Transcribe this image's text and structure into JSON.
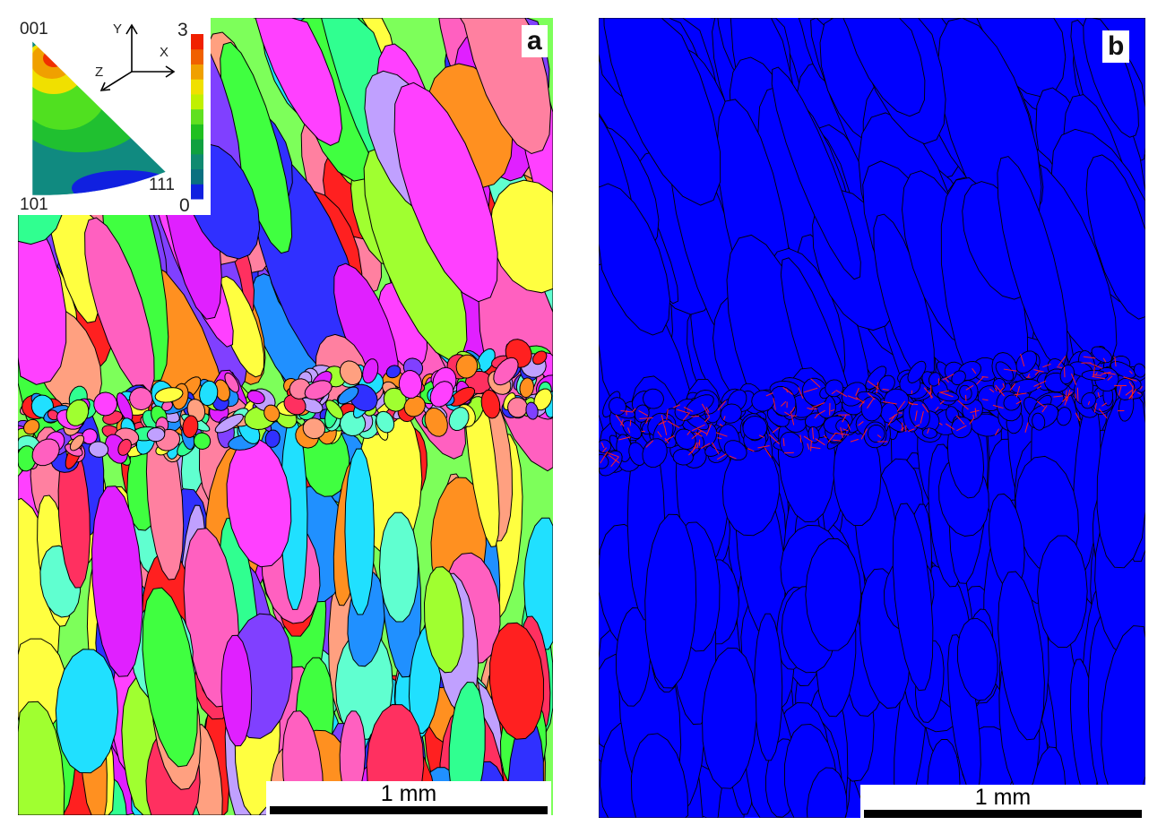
{
  "panel_a": {
    "label": "a",
    "scale_bar": "1 mm",
    "inset": {
      "pole_labels": {
        "top": "001",
        "bottom_left": "101",
        "bottom_right": "111"
      },
      "axes": {
        "y": "Y",
        "x": "X",
        "z": "Z"
      },
      "colorbar": {
        "max": "3",
        "min": "0",
        "colors": [
          "#1020e0",
          "#0a7080",
          "#108a70",
          "#10a040",
          "#20c020",
          "#60e020",
          "#c0f000",
          "#f0e000",
          "#f0a000",
          "#f06000",
          "#f02000"
        ]
      }
    }
  },
  "panel_b": {
    "label": "b",
    "scale_bar": "1 mm",
    "colors": {
      "background": "#0000ff",
      "boundaries": "#000000",
      "twin_boundaries": "#ff2020"
    }
  }
}
